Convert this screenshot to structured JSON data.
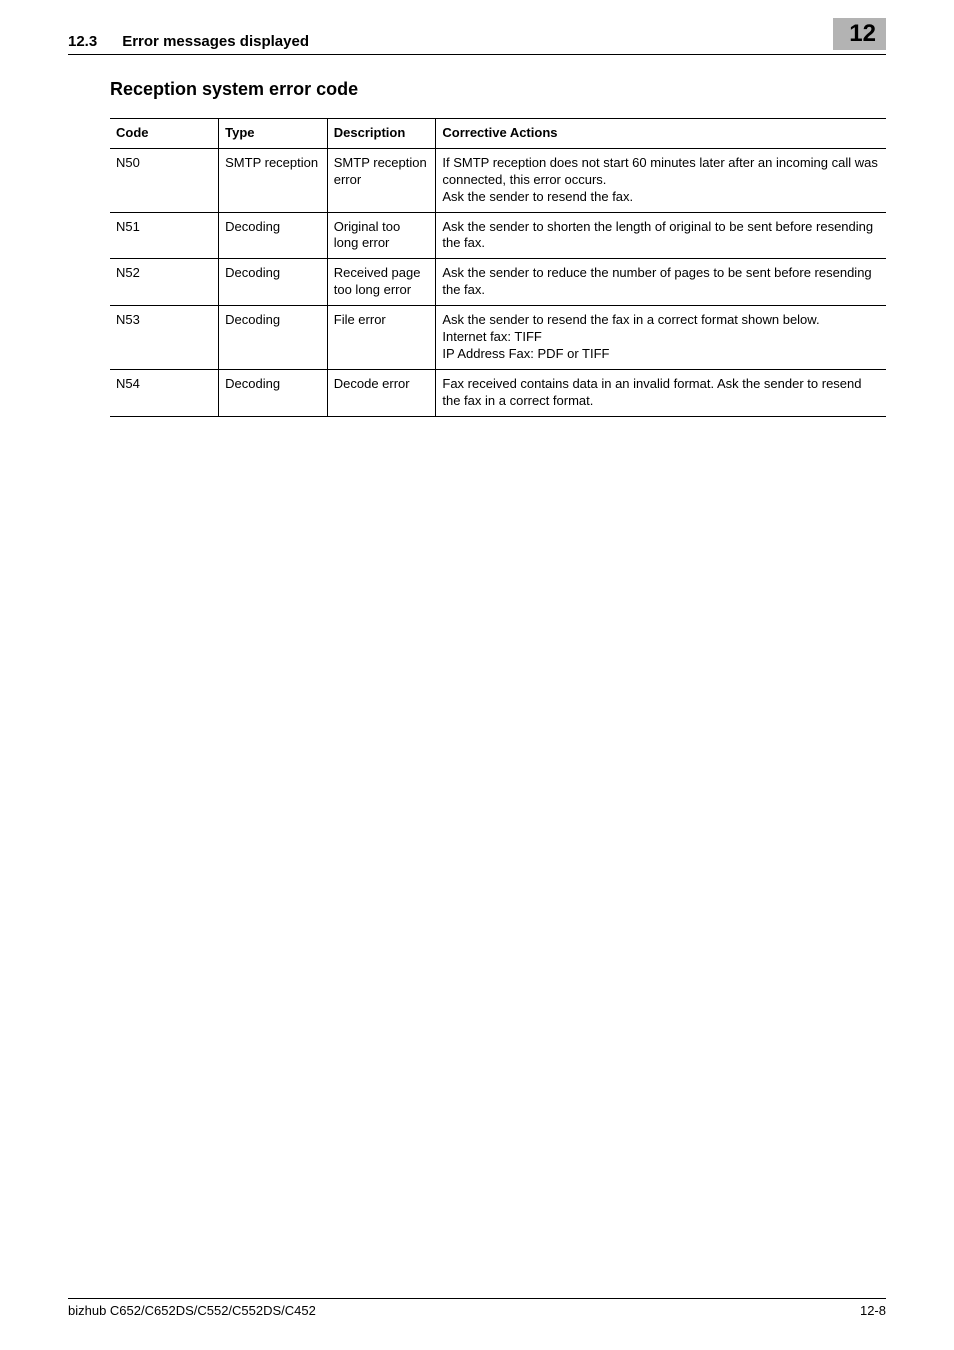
{
  "header": {
    "section_number": "12.3",
    "section_title": "Error messages displayed",
    "chapter_badge": "12"
  },
  "subheading": "Reception system error code",
  "table": {
    "columns": [
      "Code",
      "Type",
      "Descrip­tion",
      "Corrective Actions"
    ],
    "rows": [
      {
        "code": "N50",
        "type": "SMTP re­ception",
        "desc": "SMTP re­ception er­ror",
        "action": "If SMTP reception does not start 60 minutes later after an incoming call was connected, this error occurs.\nAsk the sender to resend the fax."
      },
      {
        "code": "N51",
        "type": "Decoding",
        "desc": "Original too long error",
        "action": "Ask the sender to shorten the length of original to be sent before resending the fax."
      },
      {
        "code": "N52",
        "type": "Decoding",
        "desc": "Received page too long error",
        "action": "Ask the sender to reduce the number of pages to be sent before resending the fax."
      },
      {
        "code": "N53",
        "type": "Decoding",
        "desc": "File error",
        "action": "Ask the sender to resend the fax in a correct format shown below.\nInternet fax: TIFF\nIP Address Fax: PDF or TIFF"
      },
      {
        "code": "N54",
        "type": "Decoding",
        "desc": "Decode er­ror",
        "action": "Fax received contains data in an invalid format. Ask the sender to resend the fax in a correct format."
      }
    ]
  },
  "footer": {
    "model_line": "bizhub C652/C652DS/C552/C552DS/C452",
    "page_number": "12-8"
  }
}
